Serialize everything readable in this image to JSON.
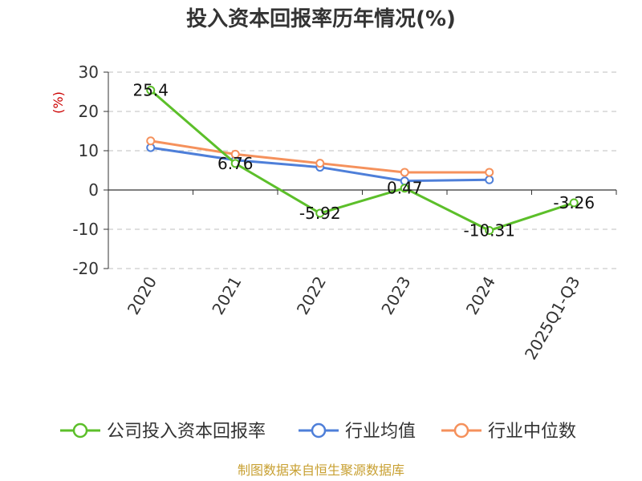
{
  "chart_data": {
    "type": "line",
    "title": "投入资本回报率历年情况(%)",
    "ylabel": "(%)",
    "categories": [
      "2020",
      "2021",
      "2022",
      "2023",
      "2024",
      "2025Q1-Q3"
    ],
    "ylim": [
      -20,
      30
    ],
    "yticks": [
      30,
      20,
      10,
      0,
      -10,
      -20
    ],
    "grid": "horizontal-dashed",
    "legend_position": "bottom",
    "series": [
      {
        "name": "公司投入资本回报率",
        "color": "#5cbf2a",
        "values": [
          25.4,
          6.76,
          -5.92,
          0.47,
          -10.31,
          -3.26
        ],
        "labels": [
          "25.4",
          "6.76",
          "-5.92",
          "0.47",
          "-10.31",
          "-3.26"
        ]
      },
      {
        "name": "行业均值",
        "color": "#4e7fd9",
        "values": [
          10.8,
          7.6,
          5.8,
          2.3,
          2.6,
          null
        ]
      },
      {
        "name": "行业中位数",
        "color": "#f5915c",
        "values": [
          12.5,
          9.1,
          6.8,
          4.5,
          4.5,
          null
        ]
      }
    ]
  },
  "source": "制图数据来自恒生聚源数据库"
}
